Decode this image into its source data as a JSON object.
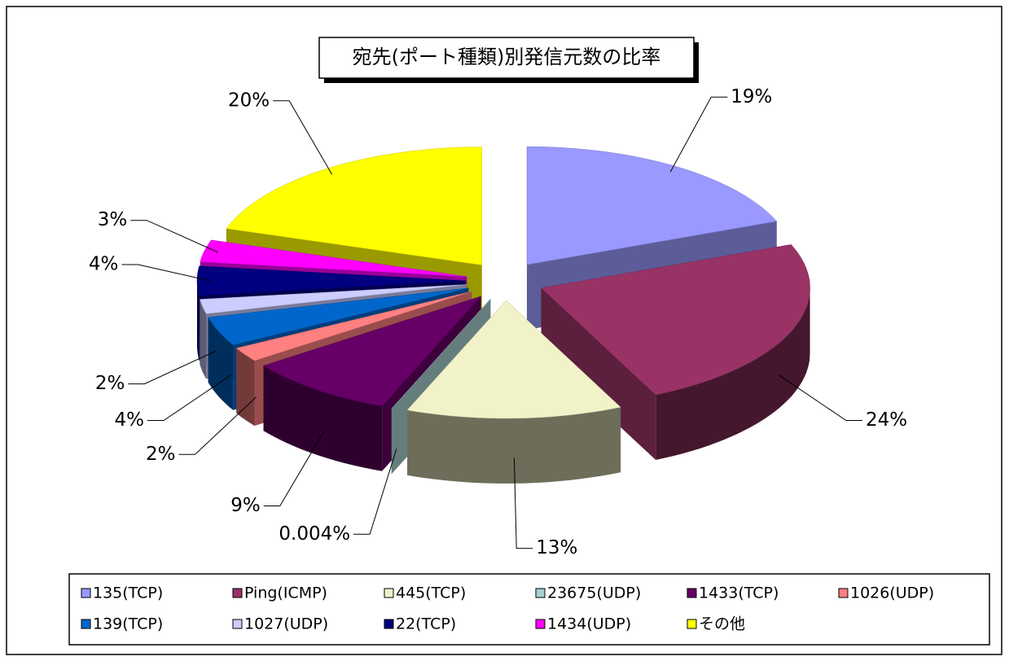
{
  "chart_data": {
    "type": "pie",
    "title": "宛先(ポート種類)別発信元数の比率",
    "categories": [
      "135(TCP)",
      "Ping(ICMP)",
      "445(TCP)",
      "23675(UDP)",
      "1433(TCP)",
      "1026(UDP)",
      "139(TCP)",
      "1027(UDP)",
      "22(TCP)",
      "1434(UDP)",
      "その他"
    ],
    "values": [
      19,
      24,
      13,
      0.004,
      9,
      2,
      4,
      2,
      4,
      3,
      20
    ],
    "value_labels": [
      "19%",
      "24%",
      "13%",
      "0.004%",
      "9%",
      "2%",
      "4%",
      "2%",
      "4%",
      "3%",
      "20%"
    ],
    "colors": [
      "#9999ff",
      "#993366",
      "#f2f2c8",
      "#a8d0d0",
      "#660066",
      "#ff8080",
      "#0066cc",
      "#ccccff",
      "#000080",
      "#ff00ff",
      "#ffff00"
    ],
    "legend": "bottom"
  }
}
